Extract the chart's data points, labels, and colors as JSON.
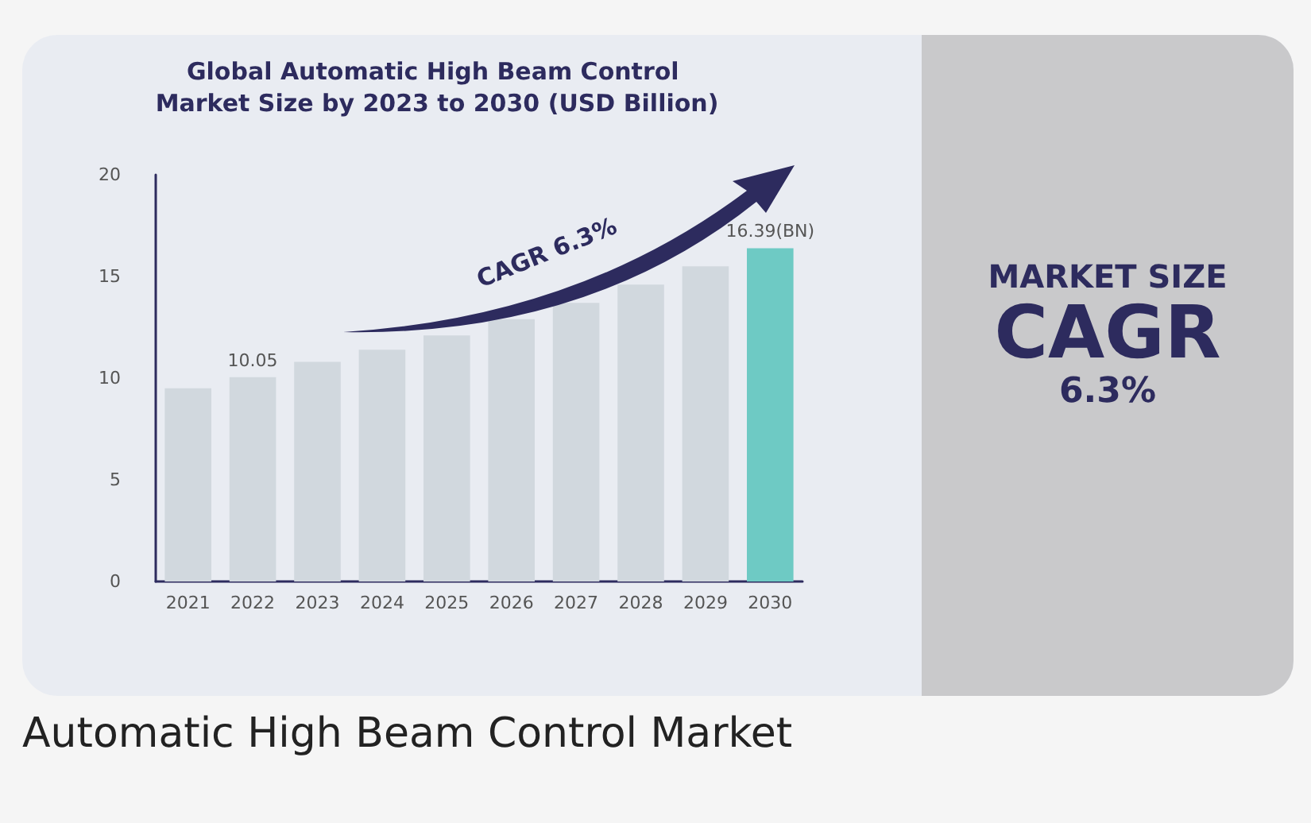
{
  "chart_data": {
    "type": "bar",
    "title": "Global Automatic High Beam Control Market Size by 2023 to 2030 (USD Billion)",
    "categories": [
      "2021",
      "2022",
      "2023",
      "2024",
      "2025",
      "2026",
      "2027",
      "2028",
      "2029",
      "2030"
    ],
    "values": [
      9.5,
      10.05,
      10.8,
      11.4,
      12.1,
      12.9,
      13.7,
      14.6,
      15.5,
      16.39
    ],
    "colors": [
      "#d1d8de",
      "#d1d8de",
      "#d1d8de",
      "#d1d8de",
      "#d1d8de",
      "#d1d8de",
      "#d1d8de",
      "#d1d8de",
      "#d1d8de",
      "#6ecac4"
    ],
    "value_labels": [
      null,
      "10.05",
      null,
      null,
      null,
      null,
      null,
      null,
      null,
      "16.39(BN)"
    ],
    "ylim": [
      0,
      20
    ],
    "yticks": [
      0,
      5,
      10,
      15,
      20
    ],
    "annotations": [
      "CAGR 6.3%",
      "MARKET SIZE",
      "CAGR",
      "6.3%",
      "Automatic High Beam Control Market"
    ]
  }
}
